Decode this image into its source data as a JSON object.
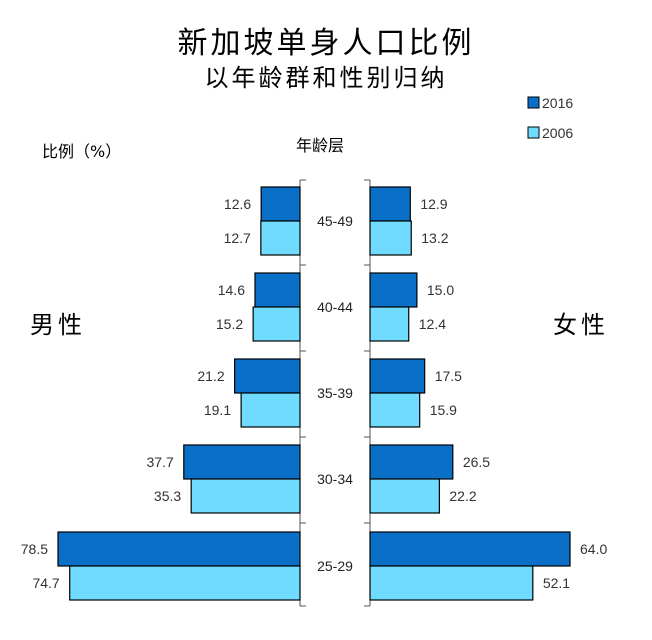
{
  "title": "新加坡单身人口比例",
  "subtitle": "以年龄群和性别归纳",
  "y_unit_label": "比例（%）",
  "age_axis_label": "年龄层",
  "left_side_label": "男性",
  "right_side_label": "女性",
  "colors": {
    "s2016": "#0a6fc7",
    "s2006": "#6fdcff"
  },
  "chart_data": {
    "type": "bar",
    "orientation": "horizontal-butterfly",
    "categories": [
      "45-49",
      "40-44",
      "35-39",
      "30-34",
      "25-29"
    ],
    "series": [
      {
        "name": "2016",
        "male": [
          12.6,
          14.6,
          21.2,
          37.7,
          78.5
        ],
        "female": [
          12.9,
          15.0,
          17.5,
          26.5,
          64.0
        ]
      },
      {
        "name": "2006",
        "male": [
          12.7,
          15.2,
          19.1,
          35.3,
          74.7
        ],
        "female": [
          13.2,
          12.4,
          15.9,
          22.2,
          52.1
        ]
      }
    ],
    "male_labels": [
      [
        "12.6",
        "12.7"
      ],
      [
        "14.6",
        "15.2"
      ],
      [
        "21.2",
        "19.1"
      ],
      [
        "37.7",
        "35.3"
      ],
      [
        "78.5",
        "74.7"
      ]
    ],
    "female_labels": [
      [
        "12.9",
        "13.2"
      ],
      [
        "15.0",
        "12.4"
      ],
      [
        "17.5",
        "15.9"
      ],
      [
        "26.5",
        "22.2"
      ],
      [
        "64.0",
        "52.1"
      ]
    ],
    "legend": [
      "2016",
      "2006"
    ],
    "legend_position": "top-right"
  }
}
